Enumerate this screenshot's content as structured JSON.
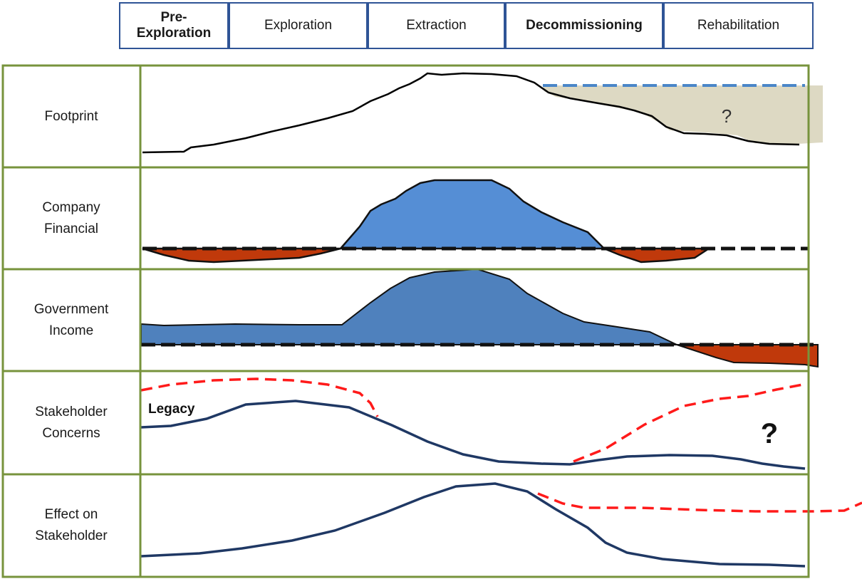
{
  "phases": [
    {
      "label": "Pre-\nExploration"
    },
    {
      "label": "Exploration"
    },
    {
      "label": "Extraction"
    },
    {
      "label": "Decommissioning"
    },
    {
      "label": "Rehabilitation"
    }
  ],
  "rows": [
    {
      "label": "Footprint"
    },
    {
      "label": "Company\nFinancial"
    },
    {
      "label": "Government\nIncome"
    },
    {
      "label": "Stakeholder\nConcerns"
    },
    {
      "label": "Effect on\nStakeholder"
    }
  ],
  "annotations": {
    "footprint_question": "?",
    "legacy": "Legacy",
    "concerns_question": "?"
  },
  "colors": {
    "grid_border": "#77933c",
    "phase_border": "#2f5496",
    "positive_fill": "#558ed5",
    "positive_fill_gov": "#4f81bd",
    "negative_fill": "#c0390b",
    "uncertain_fill": "#ddd9c3",
    "navy_line": "#1f3864",
    "red_dash": "#ff1a1a",
    "blue_dash": "#4a86c8"
  }
}
